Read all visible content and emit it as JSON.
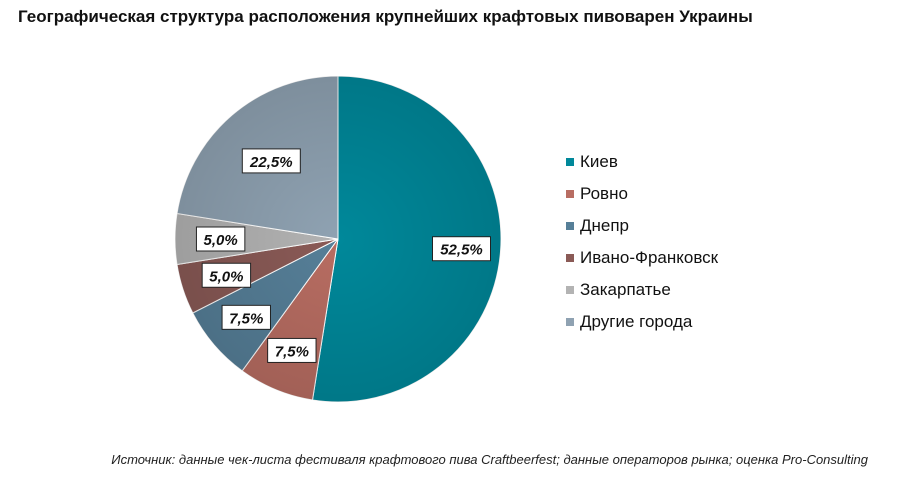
{
  "chart_data": {
    "type": "pie",
    "title": "Географическая структура расположения крупнейших крафтовых пивоварен Украины",
    "slices": [
      {
        "label": "Киев",
        "value": 52.5,
        "display": "52,5%",
        "color": "#00889A"
      },
      {
        "label": "Ровно",
        "value": 7.5,
        "display": "7,5%",
        "color": "#B86D62"
      },
      {
        "label": "Днепр",
        "value": 7.5,
        "display": "7,5%",
        "color": "#567F98"
      },
      {
        "label": "Ивано-Франковск",
        "value": 5.0,
        "display": "5,0%",
        "color": "#8A5A56"
      },
      {
        "label": "Закарпатье",
        "value": 5.0,
        "display": "5,0%",
        "color": "#B3B3B3"
      },
      {
        "label": "Другие города",
        "value": 22.5,
        "display": "22,5%",
        "color": "#8FA2B2"
      }
    ],
    "legend_position": "right"
  },
  "source": "Источник: данные чек-листа фестиваля крафтового пива Craftbeerfest; данные операторов рынка; оценка Pro-Consulting"
}
